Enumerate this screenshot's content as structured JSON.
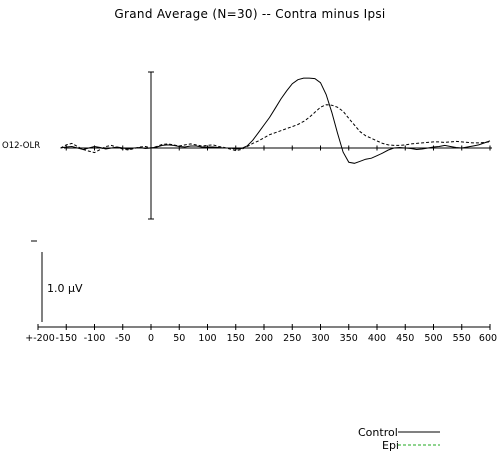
{
  "title": "Grand Average (N=30)  --  Contra minus Ipsi",
  "channel_label": "O12-OLR",
  "scale_label": "1.0 μV",
  "legend": [
    {
      "label": "Control",
      "color": "#000000",
      "dash": "solid"
    },
    {
      "label": "Epi",
      "color": "#1faa1f",
      "dash": "dashed"
    }
  ],
  "chart_data": {
    "type": "line",
    "title": "Grand Average (N=30)  --  Contra minus Ipsi",
    "xlabel": "",
    "ylabel": "",
    "xlim": [
      -200,
      600
    ],
    "x_ticks": [
      -200,
      -150,
      -100,
      -50,
      0,
      50,
      100,
      150,
      200,
      250,
      300,
      350,
      400,
      450,
      500,
      550,
      600
    ],
    "y_scale_bar_uV": 1.0,
    "grid": false,
    "legend_position": "bottom-right",
    "series": [
      {
        "name": "Control",
        "x": [
          -160,
          -150,
          -140,
          -130,
          -120,
          -110,
          -100,
          -90,
          -80,
          -70,
          -60,
          -50,
          -40,
          -30,
          -20,
          -10,
          0,
          10,
          20,
          30,
          40,
          50,
          60,
          70,
          80,
          90,
          100,
          110,
          120,
          130,
          140,
          150,
          160,
          170,
          180,
          190,
          200,
          210,
          220,
          230,
          240,
          250,
          260,
          270,
          280,
          290,
          300,
          310,
          320,
          330,
          340,
          350,
          360,
          370,
          380,
          390,
          400,
          410,
          420,
          430,
          440,
          450,
          460,
          470,
          480,
          490,
          500,
          510,
          520,
          530,
          540,
          550,
          560,
          570,
          580,
          590,
          600
        ],
        "y": [
          0.0,
          0.02,
          0.03,
          0.0,
          -0.03,
          0.0,
          0.03,
          0.01,
          -0.02,
          0.0,
          0.02,
          0.0,
          -0.02,
          0.0,
          0.01,
          -0.01,
          0.0,
          0.02,
          0.05,
          0.06,
          0.05,
          0.03,
          0.02,
          0.04,
          0.04,
          0.02,
          0.02,
          0.02,
          0.01,
          0.0,
          0.0,
          -0.02,
          -0.01,
          0.04,
          0.15,
          0.3,
          0.45,
          0.6,
          0.78,
          0.96,
          1.12,
          1.26,
          1.34,
          1.37,
          1.37,
          1.36,
          1.28,
          1.05,
          0.7,
          0.3,
          -0.08,
          -0.28,
          -0.3,
          -0.26,
          -0.22,
          -0.2,
          -0.15,
          -0.1,
          -0.04,
          0.0,
          0.01,
          0.0,
          -0.01,
          -0.03,
          -0.02,
          0.0,
          0.02,
          0.03,
          0.05,
          0.03,
          0.01,
          0.0,
          0.02,
          0.04,
          0.06,
          0.1,
          0.14
        ]
      },
      {
        "name": "Epi",
        "x": [
          -160,
          -150,
          -140,
          -130,
          -120,
          -110,
          -100,
          -90,
          -80,
          -70,
          -60,
          -50,
          -40,
          -30,
          -20,
          -10,
          0,
          10,
          20,
          30,
          40,
          50,
          60,
          70,
          80,
          90,
          100,
          110,
          120,
          130,
          140,
          150,
          160,
          170,
          180,
          190,
          200,
          210,
          220,
          230,
          240,
          250,
          260,
          270,
          280,
          290,
          300,
          310,
          320,
          330,
          340,
          350,
          360,
          370,
          380,
          390,
          400,
          410,
          420,
          430,
          440,
          450,
          460,
          470,
          480,
          490,
          500,
          510,
          520,
          530,
          540,
          550,
          560,
          570,
          580,
          590,
          600
        ],
        "y": [
          0.0,
          0.06,
          0.09,
          0.03,
          -0.03,
          -0.06,
          -0.09,
          -0.03,
          0.03,
          0.05,
          0.01,
          -0.02,
          -0.04,
          -0.01,
          0.02,
          0.03,
          0.0,
          0.03,
          0.07,
          0.08,
          0.06,
          0.04,
          0.06,
          0.08,
          0.06,
          0.04,
          0.05,
          0.06,
          0.03,
          0.01,
          -0.02,
          -0.05,
          -0.03,
          0.03,
          0.09,
          0.14,
          0.2,
          0.26,
          0.3,
          0.34,
          0.38,
          0.42,
          0.46,
          0.52,
          0.6,
          0.7,
          0.8,
          0.85,
          0.84,
          0.8,
          0.72,
          0.58,
          0.45,
          0.32,
          0.24,
          0.19,
          0.14,
          0.09,
          0.06,
          0.05,
          0.05,
          0.06,
          0.08,
          0.09,
          0.1,
          0.11,
          0.12,
          0.12,
          0.11,
          0.12,
          0.13,
          0.12,
          0.11,
          0.1,
          0.1,
          0.11,
          0.12
        ]
      }
    ]
  }
}
